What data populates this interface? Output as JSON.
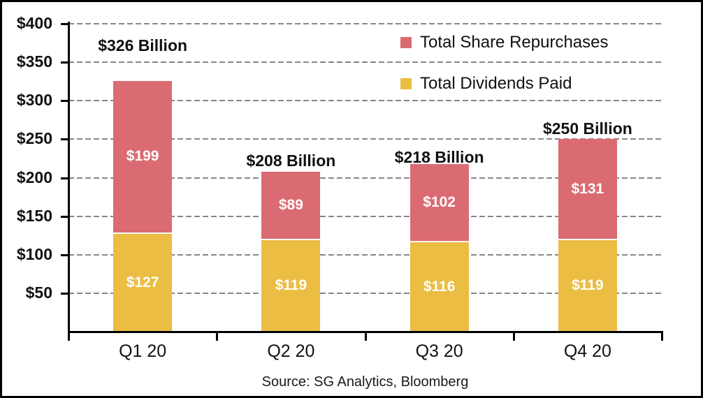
{
  "chart_data": {
    "type": "bar",
    "stacked": true,
    "categories": [
      "Q1 20",
      "Q2 20",
      "Q3 20",
      "Q4 20"
    ],
    "series": [
      {
        "key": "total-dividends-paid",
        "name": "Total Dividends Paid",
        "color": "#EBBD43",
        "values": [
          127,
          119,
          116,
          119
        ],
        "labels": [
          "$127",
          "$119",
          "$116",
          "$119"
        ]
      },
      {
        "key": "total-share-repurchases",
        "name": "Total Share Repurchases",
        "color": "#DB6B72",
        "values": [
          199,
          89,
          102,
          131
        ],
        "labels": [
          "$199",
          "$89",
          "$102",
          "$131"
        ]
      }
    ],
    "totals": [
      "$326 Billion",
      "$208 Billion",
      "$218 Billion",
      "$250 Billion"
    ],
    "total_values": [
      326,
      208,
      218,
      250
    ],
    "y_axis": {
      "ticks": [
        "$400",
        "$350",
        "$300",
        "$250",
        "$200",
        "$150",
        "$100",
        "$50"
      ],
      "tick_values": [
        400,
        350,
        300,
        250,
        200,
        150,
        100,
        50
      ],
      "min": 0,
      "max": 400,
      "step": 50
    },
    "xlabel": "",
    "ylabel": "",
    "title": "",
    "grid": "dashed-horizontal",
    "grid_color": "#878787",
    "axis_color": "#000000",
    "legend_position": "top-right",
    "legend": [
      {
        "label": "Total Share Repurchases",
        "color": "#DB6B72"
      },
      {
        "label": "Total Dividends Paid",
        "color": "#EBBD43"
      }
    ],
    "source": "Source: SG Analytics, Bloomberg"
  }
}
